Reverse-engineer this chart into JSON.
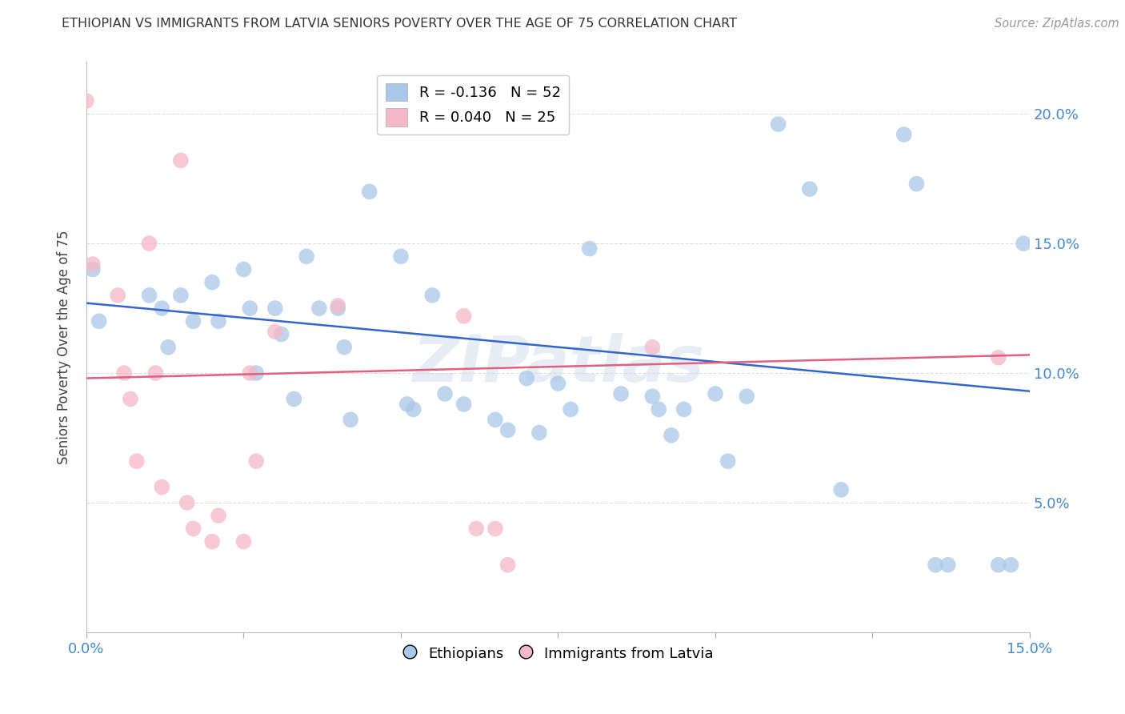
{
  "title": "ETHIOPIAN VS IMMIGRANTS FROM LATVIA SENIORS POVERTY OVER THE AGE OF 75 CORRELATION CHART",
  "source": "Source: ZipAtlas.com",
  "ylabel": "Seniors Poverty Over the Age of 75",
  "xlim": [
    0,
    0.15
  ],
  "ylim": [
    0,
    0.22
  ],
  "ytick_values": [
    0,
    0.05,
    0.1,
    0.15,
    0.2
  ],
  "ytick_labels": [
    "",
    "5.0%",
    "10.0%",
    "15.0%",
    "20.0%"
  ],
  "xtick_values": [
    0.0,
    0.025,
    0.05,
    0.075,
    0.1,
    0.125,
    0.15
  ],
  "xtick_labels": [
    "0.0%",
    "",
    "",
    "",
    "",
    "",
    "15.0%"
  ],
  "legend_blue_label": "R = -0.136   N = 52",
  "legend_pink_label": "R = 0.040   N = 25",
  "legend_ethiopians": "Ethiopians",
  "legend_latvia": "Immigrants from Latvia",
  "blue_color": "#a8c8e8",
  "pink_color": "#f5b8c8",
  "blue_line_color": "#3366cc",
  "pink_line_color": "#e06080",
  "right_axis_color": "#4488cc",
  "grid_color": "#dddddd",
  "watermark": "ZIPatlas",
  "blue_scatter_x": [
    0.001,
    0.002,
    0.01,
    0.012,
    0.013,
    0.015,
    0.017,
    0.02,
    0.021,
    0.025,
    0.026,
    0.027,
    0.03,
    0.031,
    0.033,
    0.035,
    0.037,
    0.04,
    0.041,
    0.042,
    0.045,
    0.05,
    0.051,
    0.052,
    0.055,
    0.057,
    0.06,
    0.065,
    0.067,
    0.07,
    0.072,
    0.075,
    0.077,
    0.08,
    0.085,
    0.09,
    0.091,
    0.093,
    0.095,
    0.1,
    0.102,
    0.105,
    0.11,
    0.115,
    0.12,
    0.13,
    0.132,
    0.135,
    0.137,
    0.145,
    0.147,
    0.149
  ],
  "blue_scatter_y": [
    0.14,
    0.12,
    0.13,
    0.125,
    0.11,
    0.13,
    0.12,
    0.135,
    0.12,
    0.14,
    0.125,
    0.1,
    0.125,
    0.115,
    0.09,
    0.145,
    0.125,
    0.125,
    0.11,
    0.082,
    0.17,
    0.145,
    0.088,
    0.086,
    0.13,
    0.092,
    0.088,
    0.082,
    0.078,
    0.098,
    0.077,
    0.096,
    0.086,
    0.148,
    0.092,
    0.091,
    0.086,
    0.076,
    0.086,
    0.092,
    0.066,
    0.091,
    0.196,
    0.171,
    0.055,
    0.192,
    0.173,
    0.026,
    0.026,
    0.026,
    0.026,
    0.15
  ],
  "pink_scatter_x": [
    0.0,
    0.001,
    0.005,
    0.006,
    0.007,
    0.008,
    0.01,
    0.011,
    0.012,
    0.015,
    0.016,
    0.017,
    0.02,
    0.021,
    0.025,
    0.026,
    0.027,
    0.03,
    0.04,
    0.06,
    0.062,
    0.065,
    0.067,
    0.09,
    0.145
  ],
  "pink_scatter_y": [
    0.205,
    0.142,
    0.13,
    0.1,
    0.09,
    0.066,
    0.15,
    0.1,
    0.056,
    0.182,
    0.05,
    0.04,
    0.035,
    0.045,
    0.035,
    0.1,
    0.066,
    0.116,
    0.126,
    0.122,
    0.04,
    0.04,
    0.026,
    0.11,
    0.106
  ],
  "blue_trendline_x": [
    0.0,
    0.15
  ],
  "blue_trendline_y": [
    0.127,
    0.093
  ],
  "pink_trendline_x": [
    0.0,
    0.15
  ],
  "pink_trendline_y": [
    0.098,
    0.107
  ]
}
